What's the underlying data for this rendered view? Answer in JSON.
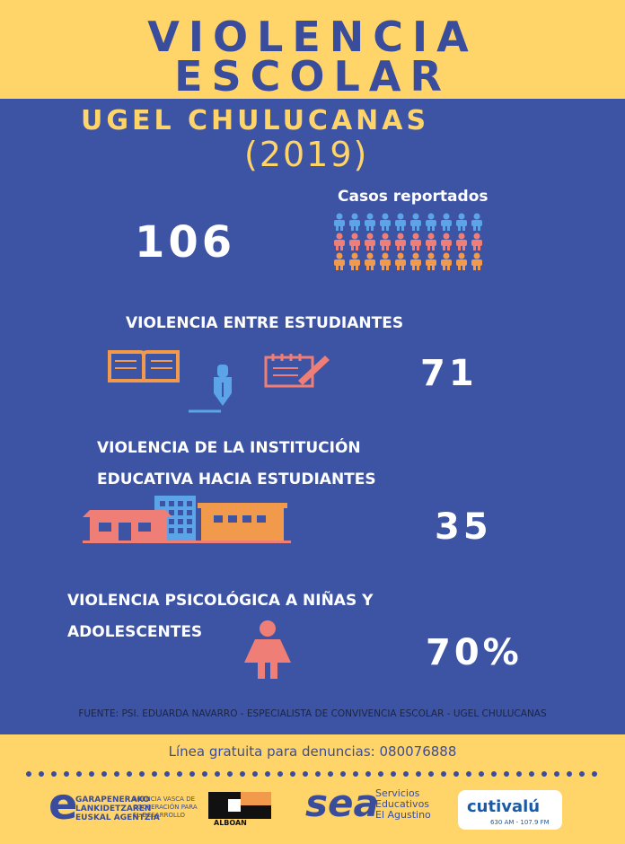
{
  "header": {
    "title_line1": "VIOLENCIA",
    "title_line2": "ESCOLAR"
  },
  "subheader": {
    "org": "UGEL CHULUCANAS",
    "year": "(2019)"
  },
  "cases": {
    "label": "Casos reportados",
    "total": "106",
    "icon_rows": [
      {
        "color": "#5ba4e8",
        "count": 10
      },
      {
        "color": "#ef7f76",
        "count": 10
      },
      {
        "color": "#f29a4b",
        "count": 10
      }
    ]
  },
  "sections": {
    "students": {
      "label": "VIOLENCIA ENTRE ESTUDIANTES",
      "value": "71"
    },
    "institution": {
      "label_line1": "VIOLENCIA DE LA INSTITUCIÓN",
      "label_line2": "EDUCATIVA HACIA ESTUDIANTES",
      "value": "35"
    },
    "psychological": {
      "label_line1": "VIOLENCIA PSICOLÓGICA A NIÑAS Y",
      "label_line2": "ADOLESCENTES",
      "value": "70%"
    }
  },
  "source": "FUENTE: PSI. EDUARDA NAVARRO - ESPECIALISTA DE CONVIVENCIA ESCOLAR - UGEL CHULUCANAS",
  "footer": {
    "hotline": "Línea gratuita para denuncias: 080076888",
    "logos": {
      "elkartasuna_left": "GARAPENERAKO\nLANKIDETZAREN\nEUSKAL AGENTZIA",
      "elkartasuna_right": "AGENCIA VASCA DE\nCOOPERACIÓN PARA\nEL DESARROLLO",
      "alboan": "ALBOAN",
      "sea_mark": "sea",
      "sea_text": "Servicios\nEducativos\nEl Agustino",
      "cutivalu": "cutivalú",
      "cutivalu_sub": "630 AM - 107.9 FM"
    }
  },
  "colors": {
    "yellow": "#ffd468",
    "blue_bg": "#3d54a4",
    "title_blue": "#3a4d9c",
    "light_blue": "#5ba4e8",
    "salmon": "#ef7f76",
    "orange": "#f29a4b"
  }
}
